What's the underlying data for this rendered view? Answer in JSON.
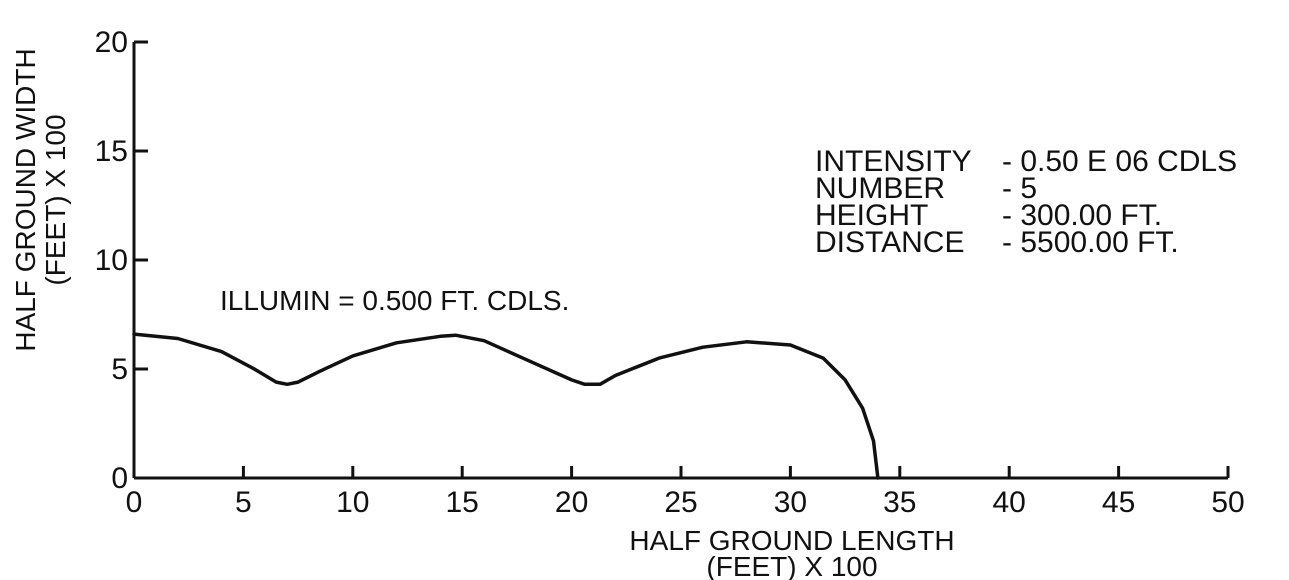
{
  "chart_data": {
    "type": "line",
    "xlabel_line1": "HALF GROUND LENGTH",
    "xlabel_line2": "(FEET) X 100",
    "ylabel_line1": "HALF GROUND WIDTH",
    "ylabel_line2": "(FEET) X 100",
    "xlim": [
      0,
      50
    ],
    "ylim": [
      0,
      20
    ],
    "x_ticks": [
      0,
      5,
      10,
      15,
      20,
      25,
      30,
      35,
      40,
      45,
      50
    ],
    "y_ticks": [
      0,
      5,
      10,
      15,
      20
    ],
    "grid": false,
    "annotation": "ILLUMIN = 0.500 FT. CDLS.",
    "info_lines": [
      {
        "label": "INTENSITY",
        "value": "- 0.50 E 06 CDLS"
      },
      {
        "label": "NUMBER",
        "value": "- 5"
      },
      {
        "label": "HEIGHT",
        "value": "- 300.00 FT."
      },
      {
        "label": "DISTANCE",
        "value": "- 5500.00 FT."
      }
    ],
    "series": [
      {
        "x": [
          0,
          2,
          4,
          5.5,
          6.5,
          7,
          7.5,
          8.5,
          10,
          12,
          14,
          14.7,
          16,
          18,
          20,
          20.6,
          21.3,
          22,
          24,
          26,
          28,
          30,
          31.5,
          32.5,
          33.3,
          33.8,
          34
        ],
        "y": [
          6.6,
          6.4,
          5.8,
          5.0,
          4.4,
          4.3,
          4.4,
          4.9,
          5.6,
          6.2,
          6.5,
          6.55,
          6.3,
          5.4,
          4.5,
          4.3,
          4.3,
          4.7,
          5.5,
          6.0,
          6.25,
          6.1,
          5.5,
          4.5,
          3.2,
          1.7,
          0
        ]
      }
    ]
  }
}
